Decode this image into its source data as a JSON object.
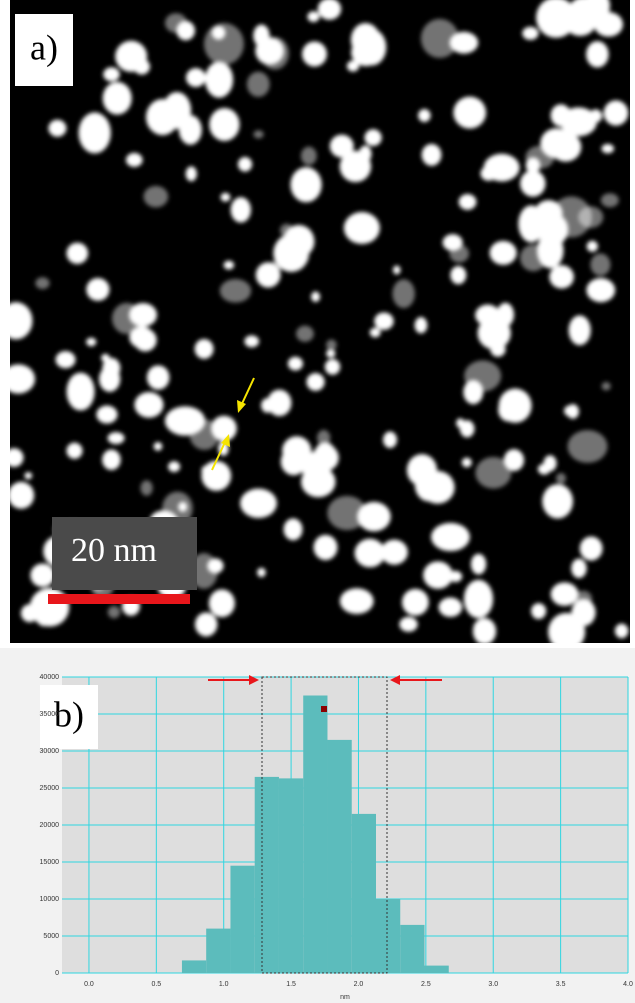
{
  "chart_data": {
    "type": "histogram",
    "panel_a_label": "a)",
    "scale_bar_label": "20 nm",
    "panel_b_label": "b)",
    "x_label": "nm",
    "bins": [
      0.69,
      0.87,
      1.05,
      1.23,
      1.41,
      1.59,
      1.77,
      1.95,
      2.13,
      2.31,
      2.49,
      2.67
    ],
    "values": [
      1700,
      6000,
      14500,
      26500,
      26300,
      37500,
      31500,
      21500,
      10000,
      6500,
      1000
    ],
    "color": "#5cbcbc",
    "xlim": [
      -0.2,
      4.0
    ],
    "xticks": [
      {
        "value": 0,
        "label": "0.0"
      },
      {
        "value": 0.5,
        "label": "0.5"
      },
      {
        "value": 1,
        "label": "1.0"
      },
      {
        "value": 1.5,
        "label": "1.5"
      },
      {
        "value": 2,
        "label": "2.0"
      },
      {
        "value": 2.5,
        "label": "2.5"
      },
      {
        "value": 3,
        "label": "3.0"
      },
      {
        "value": 3.5,
        "label": "3.5"
      },
      {
        "value": 4,
        "label": "4.0"
      }
    ],
    "ylim": [
      0,
      40000
    ],
    "yticks": [
      0,
      5000,
      10000,
      15000,
      20000,
      25000,
      30000,
      35000,
      40000
    ],
    "grid": true
  }
}
